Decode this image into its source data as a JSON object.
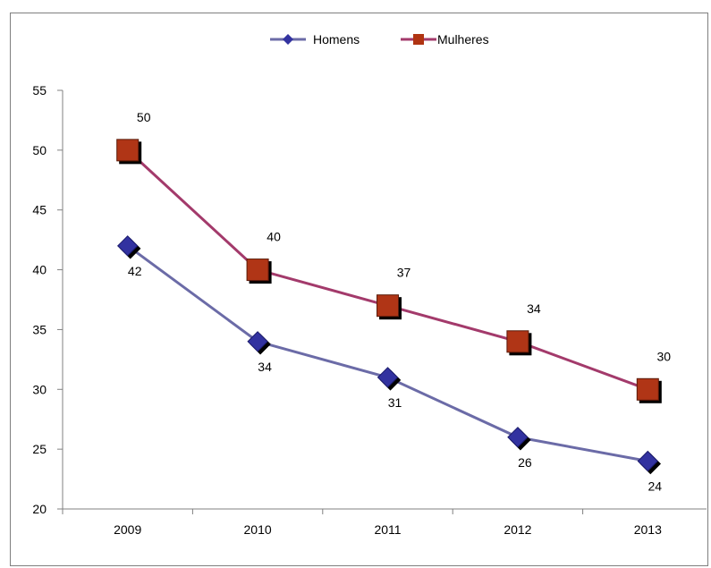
{
  "chart_data": {
    "type": "line",
    "title": "",
    "xlabel": "",
    "ylabel": "",
    "categories": [
      "2009",
      "2010",
      "2011",
      "2012",
      "2013"
    ],
    "ylim": [
      20,
      55
    ],
    "yticks": [
      "20",
      "25",
      "30",
      "35",
      "40",
      "45",
      "50",
      "55"
    ],
    "grid": false,
    "legend_position": "top",
    "series": [
      {
        "name": "Homens",
        "values": [
          42,
          34,
          31,
          26,
          24
        ],
        "labels": [
          "42",
          "34",
          "31",
          "26",
          "24"
        ],
        "line_color": "#6b6ba7",
        "marker": "diamond",
        "marker_color": "#3333a0"
      },
      {
        "name": "Mulheres",
        "values": [
          50,
          40,
          37,
          34,
          30
        ],
        "labels": [
          "50",
          "40",
          "37",
          "34",
          "30"
        ],
        "line_color": "#a33a6b",
        "marker": "square",
        "marker_color": "#b03412"
      }
    ]
  }
}
